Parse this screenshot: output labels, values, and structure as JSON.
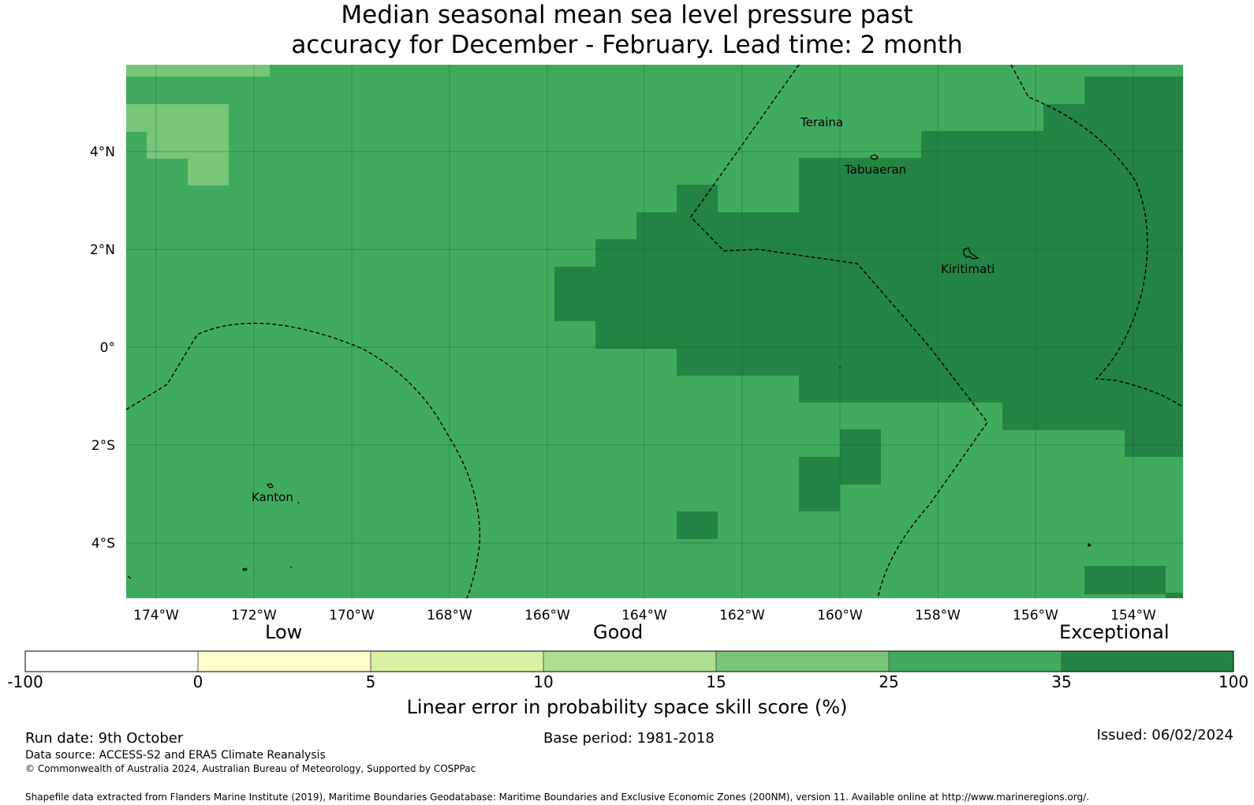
{
  "title": {
    "line1": "Median seasonal mean sea level pressure past",
    "line2": "accuracy for December - February. Lead time: 2 month"
  },
  "map": {
    "lat_labels": [
      "4°N",
      "2°N",
      "0°",
      "2°S",
      "4°S"
    ],
    "lon_labels": [
      "174°W",
      "172°W",
      "170°W",
      "168°W",
      "166°W",
      "164°W",
      "162°W",
      "160°W",
      "158°W",
      "156°W",
      "154°W"
    ],
    "places": [
      "Teraina",
      "Tabuaeran",
      "Kiritimati",
      "Kanton"
    ],
    "colors": {
      "class_15_25": "#78c679",
      "class_25_35": "#41ab5d",
      "class_35_100": "#238443",
      "grid": "#1f5f30",
      "boundary": "#000000"
    }
  },
  "colorbar": {
    "categories": [
      "Low",
      "Good",
      "Exceptional"
    ],
    "ticks": [
      "-100",
      "0",
      "5",
      "10",
      "15",
      "25",
      "35",
      "100"
    ],
    "colors": [
      "#ffffff",
      "#ffffcc",
      "#d9f0a3",
      "#addd8e",
      "#78c679",
      "#41ab5d",
      "#238443"
    ],
    "label": "Linear error in probability space skill score (%)"
  },
  "footer": {
    "run_date": "Run date: 9th October",
    "base_period": "Base period: 1981-2018",
    "issued": "Issued: 06/02/2024",
    "data_source": "Data source: ACCESS-S2 and ERA5 Climate Reanalysis",
    "copyright": "© Commonwealth of Australia 2024, Australian Bureau of Meteorology, Supported by COSPPac",
    "shapefile": "Shapefile data extracted from Flanders Marine Institute (2019), Maritime Boundaries Geodatabase: Maritime Boundaries and Exclusive Economic Zones (200NM), version 11. Available online at http://www.marineregions.org/."
  }
}
